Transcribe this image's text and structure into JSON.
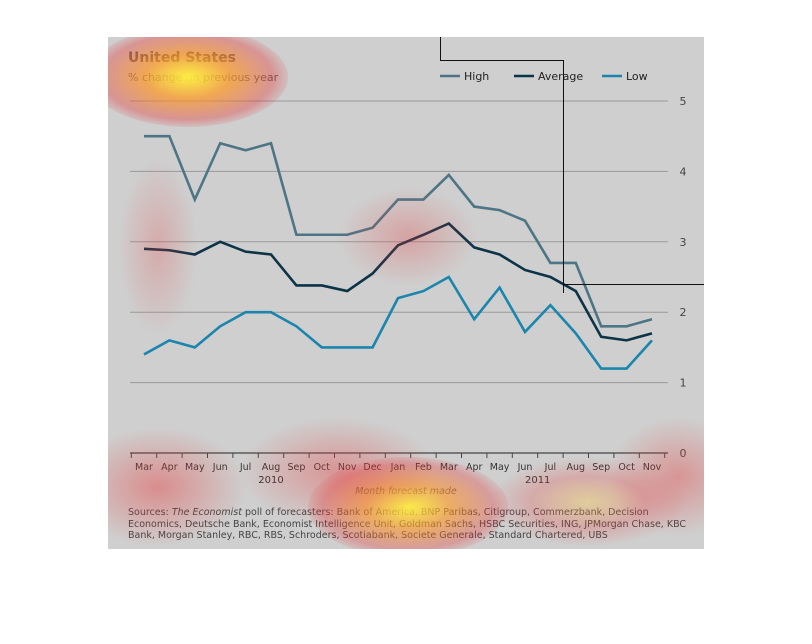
{
  "colors": {
    "high": "#4e7585",
    "average": "#0d3347",
    "low": "#1b86ad",
    "grid": "#9a9a9a",
    "panel": "#cfcfcf"
  },
  "chart_data": {
    "type": "line",
    "title": "United States",
    "subtitle": "% change on previous year",
    "xlabel": "Month forecast made",
    "categories": [
      "Mar",
      "Apr",
      "May",
      "Jun",
      "Jul",
      "Aug",
      "Sep",
      "Oct",
      "Nov",
      "Dec",
      "Jan",
      "Feb",
      "Mar",
      "Apr",
      "May",
      "Jun",
      "Jul",
      "Aug",
      "Sep",
      "Oct",
      "Nov"
    ],
    "year_labels": [
      {
        "label": "2010",
        "index": 5
      },
      {
        "label": "2011",
        "index": 15.5
      }
    ],
    "ylim": [
      0,
      5.5
    ],
    "yticks": [
      0,
      1,
      2,
      3,
      4,
      5
    ],
    "grid": true,
    "legend_position": "top-right",
    "series": [
      {
        "name": "High",
        "color_key": "high",
        "values": [
          4.5,
          4.5,
          3.6,
          4.4,
          4.3,
          4.4,
          3.1,
          3.1,
          3.1,
          3.2,
          3.6,
          3.6,
          3.95,
          3.5,
          3.45,
          3.3,
          2.7,
          2.7,
          1.8,
          1.8,
          1.9
        ]
      },
      {
        "name": "Average",
        "color_key": "average",
        "values": [
          2.9,
          2.88,
          2.82,
          3.0,
          2.86,
          2.82,
          2.38,
          2.38,
          2.3,
          2.55,
          2.95,
          3.1,
          3.26,
          2.92,
          2.82,
          2.6,
          2.5,
          2.3,
          1.65,
          1.6,
          1.7
        ]
      },
      {
        "name": "Low",
        "color_key": "low",
        "values": [
          1.4,
          1.6,
          1.5,
          1.8,
          2.0,
          2.0,
          1.8,
          1.5,
          1.5,
          1.5,
          2.2,
          2.3,
          2.5,
          1.9,
          2.35,
          1.72,
          2.1,
          1.7,
          1.2,
          1.2,
          1.6
        ]
      }
    ]
  },
  "sources": {
    "prefix": "Sources: ",
    "publication": "The Economist",
    "text": " poll of forecasters: Bank of America, BNP Paribas, Citigroup, Commerzbank, Decision Economics, Deutsche Bank, Economist Intelligence Unit, Goldman Sachs, HSBC Securities, ING, JPMorgan Chase, KBC Bank, Morgan Stanley, RBC, RBS, Schroders, Scotiabank, Societe Generale, Standard Chartered, UBS"
  }
}
